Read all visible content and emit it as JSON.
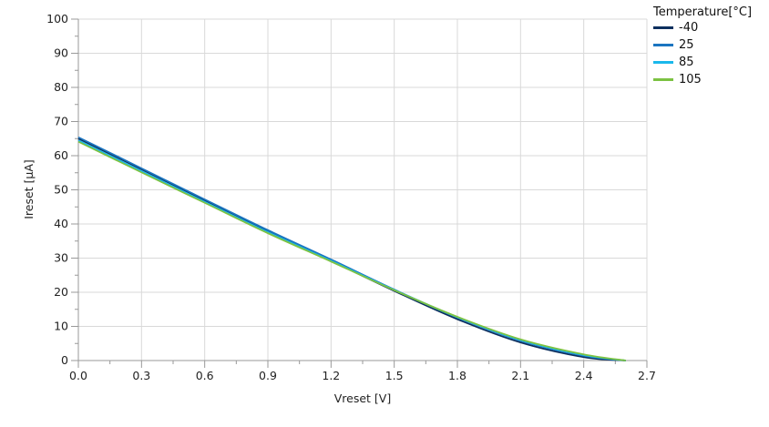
{
  "chart_data": {
    "type": "line",
    "title": "",
    "xlabel": "Vreset [V]",
    "ylabel": "Ireset [µA]",
    "xlim": [
      0,
      2.7
    ],
    "ylim": [
      0,
      100
    ],
    "x_ticks": [
      "0.0",
      "0.3",
      "0.6",
      "0.9",
      "1.2",
      "1.5",
      "1.8",
      "2.1",
      "2.4",
      "2.7"
    ],
    "y_ticks": [
      "0",
      "10",
      "20",
      "30",
      "40",
      "50",
      "60",
      "70",
      "80",
      "90",
      "100"
    ],
    "grid": true,
    "legend_title": "Temperature[°C]",
    "legend_position": "top-right",
    "x": [
      0,
      0.3,
      0.6,
      0.9,
      1.2,
      1.5,
      1.8,
      2.1,
      2.4,
      2.6
    ],
    "series": [
      {
        "name": "-40",
        "color": "#0c2f5e",
        "values": [
          65.0,
          56.0,
          46.9,
          37.8,
          29.2,
          20.4,
          12.1,
          5.3,
          1.0,
          0
        ]
      },
      {
        "name": "25",
        "color": "#1b75c0",
        "values": [
          65.4,
          56.3,
          47.2,
          38.2,
          29.6,
          20.8,
          12.6,
          5.8,
          1.4,
          0
        ]
      },
      {
        "name": "85",
        "color": "#1ab8ec",
        "values": [
          64.5,
          55.5,
          46.5,
          37.6,
          29.2,
          20.7,
          12.7,
          6.0,
          1.6,
          0
        ]
      },
      {
        "name": "105",
        "color": "#7cc242",
        "values": [
          64.1,
          55.1,
          46.2,
          37.3,
          29.0,
          20.6,
          12.8,
          6.2,
          1.8,
          0
        ]
      }
    ]
  }
}
